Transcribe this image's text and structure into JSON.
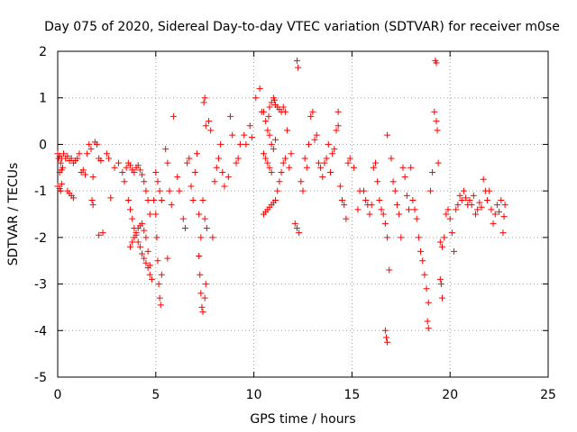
{
  "chart_data": {
    "type": "scatter",
    "title": "Day 075 of 2020, Sidereal Day-to-day VTEC variation (SDTVAR) for receiver m0se",
    "xlabel": "GPS time / hours",
    "ylabel": "SDTVAR / TECUs",
    "xlim": [
      0,
      25
    ],
    "ylim": [
      -5,
      2
    ],
    "xticks": [
      0,
      5,
      10,
      15,
      20,
      25
    ],
    "yticks": [
      -5,
      -4,
      -3,
      -2,
      -1,
      0,
      1,
      2
    ],
    "grid": true,
    "marker": "plus",
    "colors": {
      "series": "#ff0000",
      "grid": "#a0a0a0",
      "axis": "#000000"
    },
    "series": [
      {
        "name": "SDTVAR",
        "points": [
          [
            0.0,
            -0.2
          ],
          [
            0.05,
            -0.3
          ],
          [
            0.1,
            -0.25
          ],
          [
            0.15,
            -0.4
          ],
          [
            0.2,
            -0.3
          ],
          [
            0.25,
            -0.5
          ],
          [
            0.0,
            -0.9
          ],
          [
            0.1,
            -0.95
          ],
          [
            0.15,
            -1.0
          ],
          [
            0.2,
            -0.85
          ],
          [
            0.1,
            -0.6
          ],
          [
            0.2,
            -0.55
          ],
          [
            0.3,
            -0.2
          ],
          [
            0.4,
            -0.3
          ],
          [
            0.5,
            -0.25
          ],
          [
            0.6,
            -0.35
          ],
          [
            0.7,
            -0.3
          ],
          [
            0.8,
            -0.4
          ],
          [
            0.9,
            -0.35
          ],
          [
            1.0,
            -0.3
          ],
          [
            0.5,
            -1.0
          ],
          [
            0.6,
            -1.05
          ],
          [
            0.7,
            -1.1
          ],
          [
            0.8,
            -1.15
          ],
          [
            1.1,
            -0.2
          ],
          [
            1.2,
            -0.6
          ],
          [
            1.3,
            -0.55
          ],
          [
            1.4,
            -0.65
          ],
          [
            1.5,
            -0.2
          ],
          [
            1.6,
            -0.0
          ],
          [
            1.7,
            -0.1
          ],
          [
            1.8,
            -0.7
          ],
          [
            1.9,
            0.05
          ],
          [
            2.0,
            0.0
          ],
          [
            2.1,
            -0.3
          ],
          [
            2.2,
            -0.35
          ],
          [
            1.75,
            -1.2
          ],
          [
            1.8,
            -1.3
          ],
          [
            2.1,
            -1.95
          ],
          [
            2.3,
            -1.9
          ],
          [
            2.5,
            -0.2
          ],
          [
            2.6,
            -0.3
          ],
          [
            2.7,
            -1.15
          ],
          [
            2.9,
            -0.5
          ],
          [
            3.1,
            -0.4
          ],
          [
            3.3,
            -0.6
          ],
          [
            3.4,
            -0.8
          ],
          [
            3.5,
            -0.5
          ],
          [
            3.6,
            -0.4
          ],
          [
            3.7,
            -0.45
          ],
          [
            3.8,
            -0.55
          ],
          [
            3.9,
            -0.6
          ],
          [
            4.0,
            -0.5
          ],
          [
            4.1,
            -0.45
          ],
          [
            4.2,
            -0.55
          ],
          [
            4.3,
            -0.65
          ],
          [
            4.4,
            -0.8
          ],
          [
            4.5,
            -1.0
          ],
          [
            4.6,
            -1.2
          ],
          [
            4.7,
            -1.5
          ],
          [
            3.6,
            -1.2
          ],
          [
            3.7,
            -1.4
          ],
          [
            3.8,
            -1.6
          ],
          [
            3.9,
            -1.8
          ],
          [
            4.0,
            -1.95
          ],
          [
            4.1,
            -2.1
          ],
          [
            4.2,
            -2.2
          ],
          [
            4.3,
            -2.35
          ],
          [
            4.4,
            -2.45
          ],
          [
            4.5,
            -2.55
          ],
          [
            4.6,
            -2.65
          ],
          [
            4.7,
            -2.8
          ],
          [
            3.7,
            -2.2
          ],
          [
            3.8,
            -2.1
          ],
          [
            3.9,
            -2.0
          ],
          [
            4.0,
            -1.9
          ],
          [
            4.1,
            -1.8
          ],
          [
            4.2,
            -1.75
          ],
          [
            4.3,
            -1.7
          ],
          [
            4.4,
            -1.85
          ],
          [
            4.5,
            -2.0
          ],
          [
            4.6,
            -2.3
          ],
          [
            4.7,
            -2.6
          ],
          [
            4.8,
            -2.9
          ],
          [
            4.9,
            -1.2
          ],
          [
            5.0,
            -1.5
          ],
          [
            5.05,
            -2.0
          ],
          [
            5.1,
            -2.5
          ],
          [
            5.15,
            -3.0
          ],
          [
            5.2,
            -3.3
          ],
          [
            5.25,
            -3.45
          ],
          [
            5.0,
            -0.6
          ],
          [
            5.1,
            -0.8
          ],
          [
            5.2,
            -1.0
          ],
          [
            5.3,
            -1.2
          ],
          [
            5.3,
            -2.8
          ],
          [
            5.5,
            -0.1
          ],
          [
            5.6,
            -0.4
          ],
          [
            5.7,
            -1.0
          ],
          [
            5.8,
            -1.3
          ],
          [
            5.6,
            -2.45
          ],
          [
            5.9,
            0.6
          ],
          [
            6.1,
            -0.7
          ],
          [
            6.2,
            -1.0
          ],
          [
            6.4,
            -1.6
          ],
          [
            6.5,
            -1.8
          ],
          [
            6.6,
            -0.4
          ],
          [
            6.7,
            -0.3
          ],
          [
            6.8,
            -0.9
          ],
          [
            6.9,
            -1.2
          ],
          [
            7.0,
            -0.6
          ],
          [
            7.1,
            -0.2
          ],
          [
            7.2,
            -1.5
          ],
          [
            7.3,
            -2.0
          ],
          [
            7.2,
            -2.4
          ],
          [
            7.25,
            -2.8
          ],
          [
            7.3,
            -3.2
          ],
          [
            7.35,
            -3.5
          ],
          [
            7.4,
            -3.6
          ],
          [
            7.5,
            -3.3
          ],
          [
            7.55,
            -3.0
          ],
          [
            7.4,
            -1.2
          ],
          [
            7.5,
            -1.6
          ],
          [
            7.6,
            -1.8
          ],
          [
            7.45,
            0.9
          ],
          [
            7.5,
            1.0
          ],
          [
            7.55,
            0.4
          ],
          [
            7.7,
            0.5
          ],
          [
            7.8,
            0.3
          ],
          [
            7.9,
            -2.0
          ],
          [
            8.0,
            -0.8
          ],
          [
            8.1,
            -0.5
          ],
          [
            8.2,
            -0.3
          ],
          [
            8.3,
            0.0
          ],
          [
            8.4,
            -0.6
          ],
          [
            8.5,
            -0.9
          ],
          [
            8.7,
            -0.7
          ],
          [
            8.8,
            0.6
          ],
          [
            8.9,
            0.2
          ],
          [
            9.1,
            -0.4
          ],
          [
            9.2,
            -0.3
          ],
          [
            9.3,
            0.0
          ],
          [
            9.5,
            0.2
          ],
          [
            9.6,
            0.0
          ],
          [
            9.8,
            0.4
          ],
          [
            9.9,
            0.15
          ],
          [
            10.1,
            1.0
          ],
          [
            10.3,
            1.2
          ],
          [
            10.4,
            0.7
          ],
          [
            10.5,
            0.7
          ],
          [
            10.6,
            0.5
          ],
          [
            10.7,
            0.3
          ],
          [
            10.75,
            0.6
          ],
          [
            10.8,
            0.8
          ],
          [
            10.9,
            0.9
          ],
          [
            11.0,
            1.0
          ],
          [
            11.05,
            0.95
          ],
          [
            11.1,
            0.85
          ],
          [
            11.2,
            0.8
          ],
          [
            11.3,
            0.75
          ],
          [
            11.4,
            0.7
          ],
          [
            11.5,
            0.8
          ],
          [
            11.6,
            0.7
          ],
          [
            10.5,
            -0.2
          ],
          [
            10.6,
            -0.3
          ],
          [
            10.7,
            -0.4
          ],
          [
            10.8,
            -0.5
          ],
          [
            10.9,
            -0.6
          ],
          [
            10.5,
            -1.5
          ],
          [
            10.6,
            -1.45
          ],
          [
            10.7,
            -1.4
          ],
          [
            10.8,
            -1.35
          ],
          [
            10.9,
            -1.3
          ],
          [
            11.0,
            -1.25
          ],
          [
            11.1,
            -1.2
          ],
          [
            11.2,
            -1.0
          ],
          [
            11.3,
            -0.8
          ],
          [
            11.4,
            -0.6
          ],
          [
            11.5,
            -0.4
          ],
          [
            11.6,
            -0.3
          ],
          [
            10.8,
            0.2
          ],
          [
            10.9,
            0.0
          ],
          [
            11.0,
            -0.1
          ],
          [
            11.1,
            0.1
          ],
          [
            11.7,
            0.3
          ],
          [
            11.8,
            -0.5
          ],
          [
            11.9,
            -0.2
          ],
          [
            12.1,
            -1.7
          ],
          [
            12.2,
            -1.8
          ],
          [
            12.3,
            -1.9
          ],
          [
            12.2,
            1.8
          ],
          [
            12.25,
            1.65
          ],
          [
            12.4,
            -0.8
          ],
          [
            12.5,
            -1.0
          ],
          [
            12.6,
            -0.3
          ],
          [
            12.7,
            -0.5
          ],
          [
            12.8,
            0.0
          ],
          [
            12.9,
            0.6
          ],
          [
            13.0,
            0.7
          ],
          [
            13.1,
            0.1
          ],
          [
            13.2,
            0.2
          ],
          [
            13.3,
            -0.4
          ],
          [
            13.4,
            -0.5
          ],
          [
            13.5,
            -0.7
          ],
          [
            13.6,
            -0.4
          ],
          [
            13.7,
            -0.3
          ],
          [
            13.8,
            0.0
          ],
          [
            13.9,
            -0.6
          ],
          [
            14.0,
            -0.2
          ],
          [
            14.1,
            -0.1
          ],
          [
            14.2,
            0.3
          ],
          [
            14.3,
            0.4
          ],
          [
            14.3,
            0.7
          ],
          [
            14.4,
            -0.9
          ],
          [
            14.5,
            -1.2
          ],
          [
            14.6,
            -1.3
          ],
          [
            14.7,
            -1.6
          ],
          [
            14.8,
            -0.4
          ],
          [
            14.9,
            -0.3
          ],
          [
            15.1,
            -0.5
          ],
          [
            15.3,
            -1.4
          ],
          [
            15.4,
            -1.0
          ],
          [
            15.6,
            -1.0
          ],
          [
            15.7,
            -1.2
          ],
          [
            15.8,
            -1.3
          ],
          [
            15.9,
            -1.5
          ],
          [
            16.0,
            -1.3
          ],
          [
            16.1,
            -0.5
          ],
          [
            16.2,
            -0.4
          ],
          [
            16.3,
            -0.8
          ],
          [
            16.4,
            -1.2
          ],
          [
            16.5,
            -1.4
          ],
          [
            16.6,
            -1.5
          ],
          [
            16.7,
            -1.7
          ],
          [
            16.8,
            -2.0
          ],
          [
            16.9,
            -2.7
          ],
          [
            16.7,
            -4.0
          ],
          [
            16.75,
            -4.15
          ],
          [
            16.8,
            -4.25
          ],
          [
            16.8,
            0.2
          ],
          [
            17.0,
            -0.3
          ],
          [
            17.1,
            -0.8
          ],
          [
            17.2,
            -1.0
          ],
          [
            17.3,
            -1.3
          ],
          [
            17.4,
            -1.5
          ],
          [
            17.5,
            -2.0
          ],
          [
            17.6,
            -0.5
          ],
          [
            17.7,
            -0.7
          ],
          [
            17.8,
            -1.1
          ],
          [
            17.9,
            -1.4
          ],
          [
            18.0,
            -0.5
          ],
          [
            18.1,
            -1.2
          ],
          [
            18.2,
            -1.4
          ],
          [
            18.3,
            -1.6
          ],
          [
            18.4,
            -2.0
          ],
          [
            18.5,
            -2.3
          ],
          [
            18.6,
            -2.5
          ],
          [
            18.7,
            -2.8
          ],
          [
            18.8,
            -3.1
          ],
          [
            18.9,
            -3.4
          ],
          [
            18.85,
            -3.8
          ],
          [
            18.9,
            -3.95
          ],
          [
            19.0,
            -1.0
          ],
          [
            19.1,
            -0.6
          ],
          [
            19.2,
            0.7
          ],
          [
            19.3,
            0.5
          ],
          [
            19.35,
            0.3
          ],
          [
            19.25,
            1.8
          ],
          [
            19.3,
            1.75
          ],
          [
            19.4,
            -0.4
          ],
          [
            19.5,
            -2.9
          ],
          [
            19.55,
            -3.0
          ],
          [
            19.6,
            -3.3
          ],
          [
            19.5,
            -2.1
          ],
          [
            19.6,
            -2.2
          ],
          [
            19.7,
            -2.0
          ],
          [
            19.8,
            -1.5
          ],
          [
            19.9,
            -1.4
          ],
          [
            20.0,
            -1.6
          ],
          [
            20.1,
            -1.9
          ],
          [
            20.2,
            -2.3
          ],
          [
            20.3,
            -1.4
          ],
          [
            20.4,
            -1.3
          ],
          [
            20.5,
            -1.1
          ],
          [
            20.6,
            -1.2
          ],
          [
            20.7,
            -1.0
          ],
          [
            20.8,
            -1.15
          ],
          [
            20.9,
            -1.3
          ],
          [
            21.0,
            -1.2
          ],
          [
            21.1,
            -1.3
          ],
          [
            21.2,
            -1.1
          ],
          [
            21.3,
            -1.5
          ],
          [
            21.4,
            -1.4
          ],
          [
            21.5,
            -1.25
          ],
          [
            21.6,
            -1.35
          ],
          [
            21.7,
            -0.75
          ],
          [
            21.8,
            -1.0
          ],
          [
            21.9,
            -1.2
          ],
          [
            22.0,
            -1.0
          ],
          [
            22.1,
            -1.4
          ],
          [
            22.2,
            -1.7
          ],
          [
            22.3,
            -1.5
          ],
          [
            22.4,
            -1.3
          ],
          [
            22.5,
            -1.45
          ],
          [
            22.6,
            -1.2
          ],
          [
            22.7,
            -1.9
          ],
          [
            22.75,
            -1.55
          ],
          [
            22.8,
            -1.3
          ]
        ]
      }
    ]
  }
}
